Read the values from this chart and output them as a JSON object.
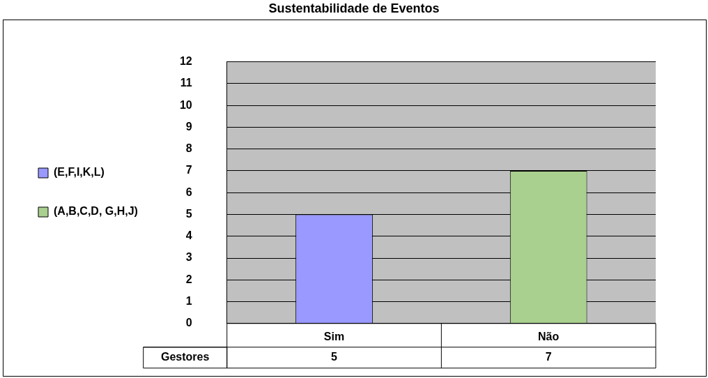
{
  "chart_data": {
    "type": "bar",
    "title": "Sustentabilidade de Eventos",
    "categories": [
      "Sim",
      "Não"
    ],
    "series": [
      {
        "name": "(E,F,I,K,L)",
        "color": "#9999ff",
        "values": [
          5,
          null
        ]
      },
      {
        "name": "(A,B,C,D, G,H,J)",
        "color": "#a9d08e",
        "values": [
          null,
          7
        ]
      }
    ],
    "ylim": [
      0,
      12
    ],
    "yticks": [
      0,
      1,
      2,
      3,
      4,
      5,
      6,
      7,
      8,
      9,
      10,
      11,
      12
    ],
    "grid": "y",
    "legend": "left",
    "data_labels": true,
    "annotations": [
      "Gestores"
    ]
  }
}
